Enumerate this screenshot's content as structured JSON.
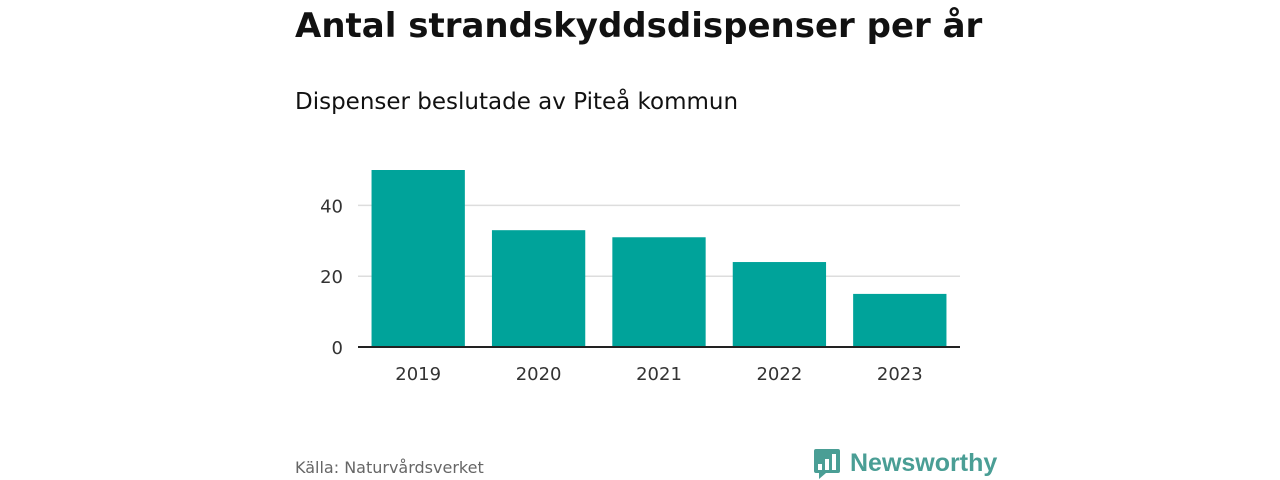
{
  "header": {
    "title": "Antal strandskyddsdispenser per år",
    "subtitle": "Dispenser beslutade av Piteå kommun"
  },
  "footer": {
    "source": "Källa: Naturvårdsverket",
    "brand": "Newsworthy",
    "brand_icon": "newsworthy-logo-icon"
  },
  "colors": {
    "bar": "#00a39a",
    "grid": "#dddddd",
    "axis": "#222222",
    "tick_text": "#333333",
    "brand": "#4a9e95"
  },
  "chart_data": {
    "type": "bar",
    "title": "Antal strandskyddsdispenser per år",
    "subtitle": "Dispenser beslutade av Piteå kommun",
    "categories": [
      "2019",
      "2020",
      "2021",
      "2022",
      "2023"
    ],
    "values": [
      50,
      33,
      31,
      24,
      15
    ],
    "xlabel": "",
    "ylabel": "",
    "ylim": [
      0,
      50
    ],
    "yticks": [
      0,
      20,
      40
    ],
    "grid": true,
    "legend": "none"
  }
}
